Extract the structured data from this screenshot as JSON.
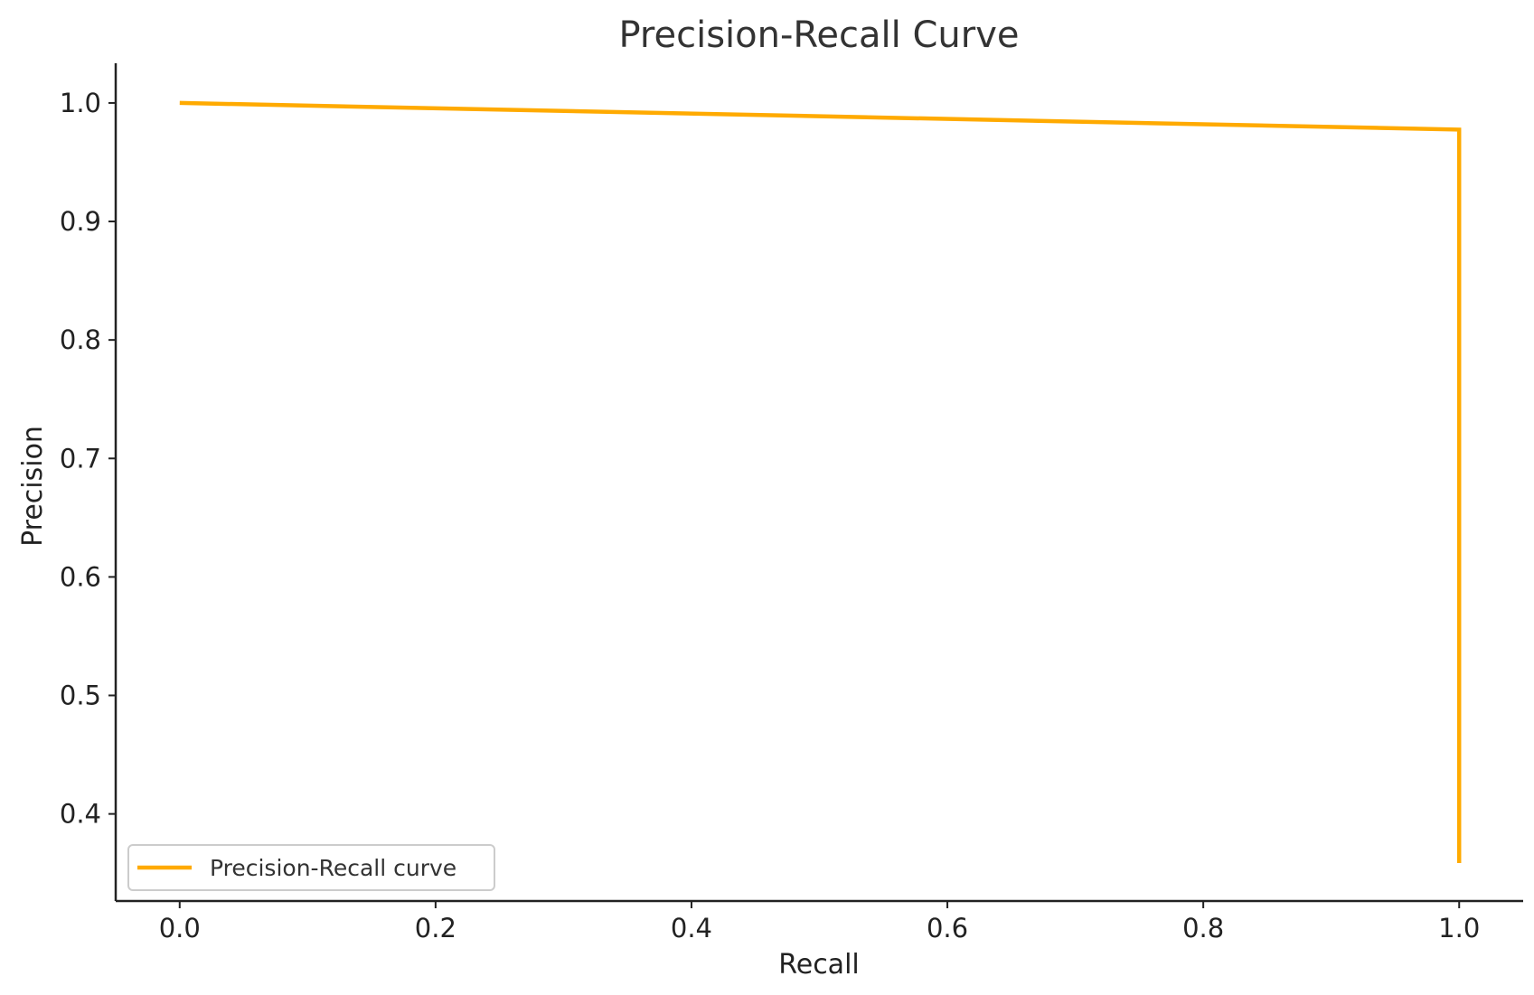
{
  "chart_data": {
    "type": "line",
    "title": "Precision-Recall Curve",
    "xlabel": "Recall",
    "ylabel": "Precision",
    "xlim": [
      -0.05,
      1.05
    ],
    "ylim": [
      0.3265,
      1.0335
    ],
    "x_ticks": [
      "0.0",
      "0.2",
      "0.4",
      "0.6",
      "0.8",
      "1.0"
    ],
    "y_ticks": [
      "0.4",
      "0.5",
      "0.6",
      "0.7",
      "0.8",
      "0.9",
      "1.0"
    ],
    "grid": false,
    "legend_position": "lower-left",
    "series": [
      {
        "name": "Precision-Recall curve",
        "color": "#FFAA00",
        "x": [
          0.0,
          1.0,
          1.0
        ],
        "y": [
          1.0,
          0.9775,
          0.3585
        ]
      }
    ]
  }
}
